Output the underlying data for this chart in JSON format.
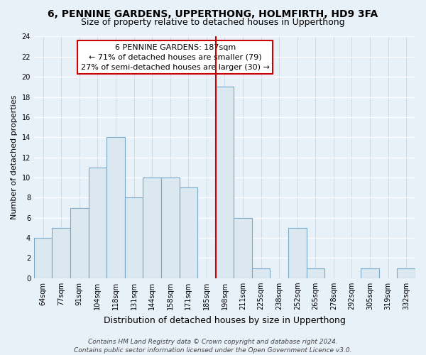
{
  "title": "6, PENNINE GARDENS, UPPERTHONG, HOLMFIRTH, HD9 3FA",
  "subtitle": "Size of property relative to detached houses in Upperthong",
  "xlabel": "Distribution of detached houses by size in Upperthong",
  "ylabel": "Number of detached properties",
  "bin_labels": [
    "64sqm",
    "77sqm",
    "91sqm",
    "104sqm",
    "118sqm",
    "131sqm",
    "144sqm",
    "158sqm",
    "171sqm",
    "185sqm",
    "198sqm",
    "211sqm",
    "225sqm",
    "238sqm",
    "252sqm",
    "265sqm",
    "278sqm",
    "292sqm",
    "305sqm",
    "319sqm",
    "332sqm"
  ],
  "bar_values": [
    4,
    5,
    7,
    11,
    14,
    8,
    10,
    10,
    9,
    0,
    19,
    6,
    1,
    0,
    5,
    1,
    0,
    0,
    1,
    0,
    1
  ],
  "bar_color": "#dce8f0",
  "bar_edge_color": "#7aaac8",
  "marker_line_color": "#cc0000",
  "marker_line_index": 10,
  "annotation_title": "6 PENNINE GARDENS: 187sqm",
  "annotation_line1": "← 71% of detached houses are smaller (79)",
  "annotation_line2": "27% of semi-detached houses are larger (30) →",
  "annotation_box_facecolor": "#ffffff",
  "annotation_box_edgecolor": "#cc0000",
  "ylim": [
    0,
    24
  ],
  "yticks": [
    0,
    2,
    4,
    6,
    8,
    10,
    12,
    14,
    16,
    18,
    20,
    22,
    24
  ],
  "footer_line1": "Contains HM Land Registry data © Crown copyright and database right 2024.",
  "footer_line2": "Contains public sector information licensed under the Open Government Licence v3.0.",
  "plot_bg_color": "#e8f0f8",
  "fig_bg_color": "#e8f0f8",
  "grid_color": "#ffffff",
  "title_fontsize": 10,
  "subtitle_fontsize": 9,
  "xlabel_fontsize": 9,
  "ylabel_fontsize": 8,
  "tick_fontsize": 7,
  "annotation_fontsize": 8,
  "footer_fontsize": 6.5
}
